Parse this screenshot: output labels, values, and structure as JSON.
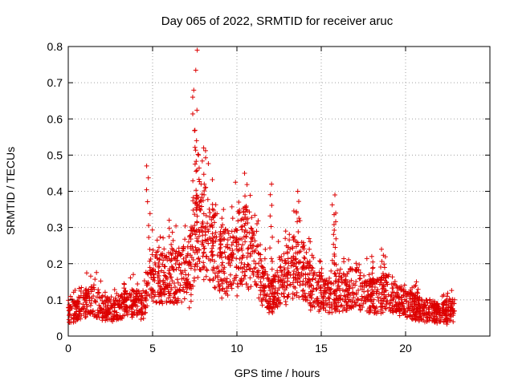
{
  "chart_data": {
    "type": "scatter",
    "title": "Day 065 of 2022, SRMTID for receiver aruc",
    "xlabel": "GPS time / hours",
    "ylabel": "SRMTID / TECUs",
    "xlim": [
      0,
      25
    ],
    "ylim": [
      0,
      0.8
    ],
    "xticks": [
      0,
      5,
      10,
      15,
      20
    ],
    "yticks": [
      0,
      0.1,
      0.2,
      0.3,
      0.4,
      0.5,
      0.6,
      0.7,
      0.8
    ],
    "xtick_labels": [
      "0",
      "5",
      "10",
      "15",
      "20"
    ],
    "ytick_labels": [
      "0",
      "0.1",
      "0.2",
      "0.3",
      "0.4",
      "0.5",
      "0.6",
      "0.7",
      "0.8"
    ],
    "grid": true,
    "marker": "+",
    "color": "#dd0000",
    "series": [
      {
        "name": "SRMTID",
        "envelope_x": [
          0,
          0.5,
          1,
          1.5,
          2,
          2.5,
          3,
          3.5,
          4,
          4.5,
          4.7,
          5,
          5.5,
          6,
          6.5,
          7,
          7.3,
          7.6,
          8,
          8.5,
          9,
          9.5,
          10,
          10.5,
          11,
          11.5,
          12,
          12.5,
          13,
          13.5,
          14,
          14.5,
          15,
          15.5,
          16,
          16.5,
          17,
          17.5,
          18,
          18.5,
          19,
          19.5,
          20,
          20.5,
          21,
          21.5,
          22,
          22.5,
          22.9
        ],
        "envelope_y": [
          0.06,
          0.07,
          0.09,
          0.1,
          0.08,
          0.07,
          0.08,
          0.09,
          0.09,
          0.08,
          0.12,
          0.17,
          0.16,
          0.17,
          0.16,
          0.18,
          0.22,
          0.28,
          0.3,
          0.25,
          0.22,
          0.2,
          0.24,
          0.25,
          0.2,
          0.15,
          0.1,
          0.15,
          0.17,
          0.2,
          0.18,
          0.13,
          0.12,
          0.11,
          0.12,
          0.12,
          0.14,
          0.12,
          0.11,
          0.11,
          0.12,
          0.1,
          0.09,
          0.08,
          0.07,
          0.07,
          0.06,
          0.07,
          0.07
        ],
        "spikes": [
          {
            "x": 4.75,
            "y": 0.47
          },
          {
            "x": 6.0,
            "y": 0.32
          },
          {
            "x": 7.2,
            "y": 0.26
          },
          {
            "x": 7.45,
            "y": 0.66
          },
          {
            "x": 7.55,
            "y": 0.79
          },
          {
            "x": 7.7,
            "y": 0.54
          },
          {
            "x": 8.05,
            "y": 0.52
          },
          {
            "x": 9.1,
            "y": 0.35
          },
          {
            "x": 10.0,
            "y": 0.37
          },
          {
            "x": 10.55,
            "y": 0.45
          },
          {
            "x": 12.05,
            "y": 0.42
          },
          {
            "x": 12.9,
            "y": 0.29
          },
          {
            "x": 13.6,
            "y": 0.4
          },
          {
            "x": 14.35,
            "y": 0.24
          },
          {
            "x": 15.75,
            "y": 0.39
          },
          {
            "x": 15.85,
            "y": 0.34
          },
          {
            "x": 18.0,
            "y": 0.22
          },
          {
            "x": 18.65,
            "y": 0.24
          },
          {
            "x": 20.7,
            "y": 0.15
          },
          {
            "x": 22.5,
            "y": 0.11
          }
        ]
      }
    ]
  }
}
